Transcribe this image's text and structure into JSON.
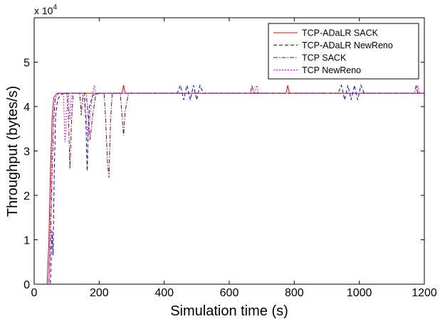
{
  "chart_data": {
    "type": "line",
    "xlabel": "Simulation time (s)",
    "ylabel": "Throughput (bytes/s)",
    "xlim": [
      0,
      1200
    ],
    "ylim": [
      0,
      60000
    ],
    "x_ticks": [
      0,
      200,
      400,
      600,
      800,
      1000,
      1200
    ],
    "y_ticks": [
      0,
      1,
      2,
      3,
      4,
      5
    ],
    "y_multiplier_base": "x 10",
    "y_multiplier_exp": "4",
    "grid": false,
    "legend_position": "top-right",
    "series": [
      {
        "name": "TCP-ADaLR SACK",
        "color": "#ff0000",
        "dash": "",
        "x": [
          0,
          40,
          45,
          50,
          55,
          60,
          70,
          80,
          270,
          275,
          280,
          285,
          775,
          780,
          785,
          1200
        ],
        "y": [
          0,
          0,
          9000,
          25000,
          37000,
          42000,
          43000,
          43000,
          43000,
          44800,
          43000,
          43000,
          43000,
          44800,
          43000,
          43000
        ]
      },
      {
        "name": "TCP-ADaLR NewReno",
        "color": "#0000ff",
        "dash": "5,3",
        "x": [
          0,
          50,
          55,
          58,
          62,
          66,
          72,
          80,
          90,
          100,
          155,
          160,
          163,
          166,
          170,
          180,
          200,
          440,
          450,
          460,
          470,
          480,
          490,
          500,
          510,
          520,
          935,
          945,
          955,
          965,
          975,
          985,
          995,
          1005,
          1015,
          1200
        ],
        "y": [
          0,
          0,
          12000,
          6500,
          26000,
          38000,
          41500,
          42500,
          43000,
          43000,
          43000,
          34000,
          25500,
          34000,
          40000,
          42500,
          43000,
          43000,
          44800,
          41500,
          44800,
          41500,
          44800,
          41500,
          44800,
          43000,
          43000,
          44800,
          41500,
          44800,
          41500,
          44800,
          41500,
          44800,
          43000,
          43000
        ]
      },
      {
        "name": "TCP SACK",
        "color": "#6b1010",
        "dash": "6,2,1.5,2",
        "x": [
          0,
          45,
          50,
          55,
          60,
          65,
          75,
          90,
          100,
          105,
          110,
          115,
          120,
          130,
          140,
          145,
          150,
          160,
          165,
          172,
          180,
          190,
          200,
          215,
          220,
          225,
          230,
          235,
          240,
          265,
          270,
          275,
          280,
          290,
          300,
          665,
          670,
          675,
          680,
          1170,
          1175,
          1180,
          1185,
          1200
        ],
        "y": [
          0,
          0,
          9000,
          25000,
          37000,
          42000,
          43000,
          43000,
          43000,
          39000,
          26000,
          37000,
          43000,
          43000,
          43000,
          38000,
          43000,
          43000,
          39000,
          32500,
          38000,
          43000,
          43000,
          43000,
          37000,
          28000,
          24000,
          37000,
          43000,
          43000,
          38000,
          33500,
          39000,
          43000,
          43000,
          43000,
          44800,
          43000,
          43000,
          43000,
          44800,
          43000,
          43000,
          43000
        ]
      },
      {
        "name": "TCP NewReno",
        "color": "#ff00ff",
        "dash": "2,2",
        "x": [
          0,
          45,
          50,
          55,
          60,
          70,
          80,
          90,
          95,
          100,
          105,
          110,
          115,
          150,
          160,
          165,
          170,
          175,
          180,
          185,
          190,
          200,
          675,
          680,
          685,
          690,
          1175,
          1180,
          1185,
          1190,
          1200
        ],
        "y": [
          0,
          0,
          18000,
          35000,
          42000,
          43000,
          43000,
          43000,
          32000,
          39000,
          43000,
          37000,
          43000,
          43000,
          38000,
          33000,
          36000,
          40000,
          43000,
          44800,
          43000,
          43000,
          43000,
          43700,
          44800,
          43000,
          43000,
          44800,
          43000,
          43000,
          43000
        ]
      }
    ]
  }
}
